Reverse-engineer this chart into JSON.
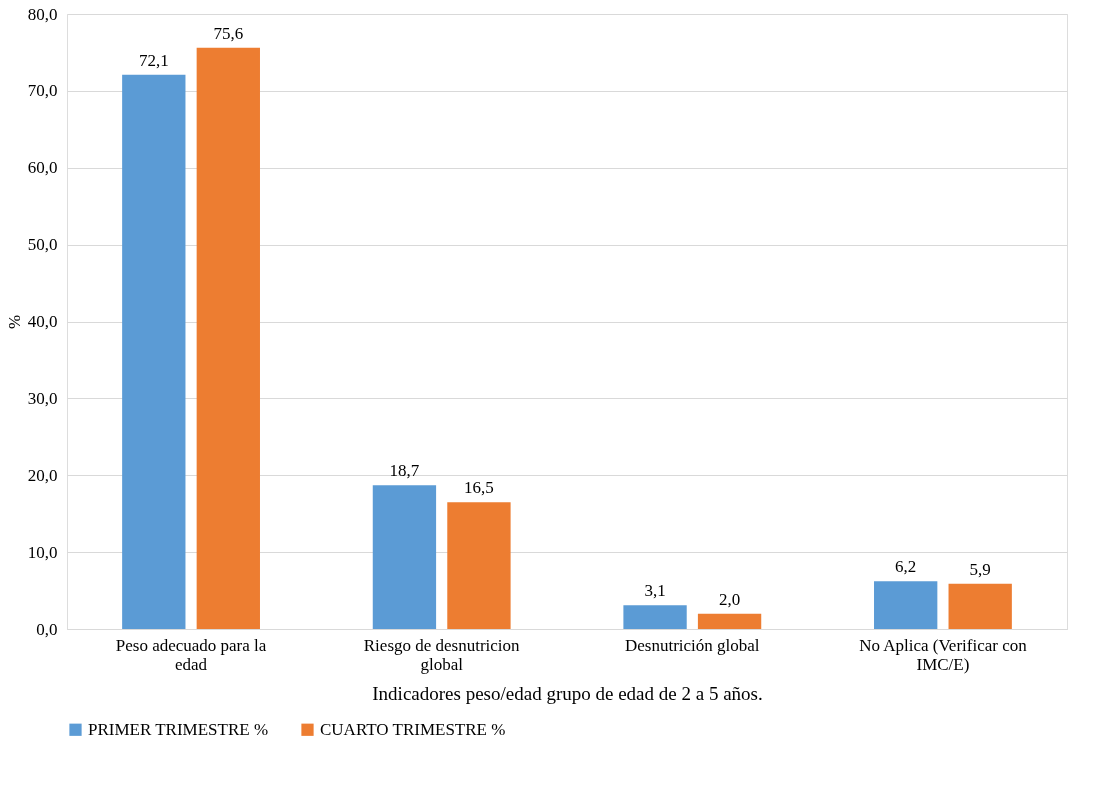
{
  "chart_data": {
    "type": "bar",
    "xlabel": "Indicadores peso/edad grupo de edad de 2 a 5 años.",
    "ylabel": "%",
    "categories": [
      "Peso adecuado para la edad",
      "Riesgo de desnutricion global",
      "Desnutrición global",
      "No Aplica (Verificar con IMC/E)"
    ],
    "series": [
      {
        "name": "PRIMER TRIMESTRE %",
        "color": "#5b9bd5",
        "values": [
          72.1,
          18.7,
          3.1,
          6.2
        ],
        "value_labels": [
          "72,1",
          "18,7",
          "3,1",
          "6,2"
        ]
      },
      {
        "name": "CUARTO TRIMESTRE %",
        "color": "#ed7d31",
        "values": [
          75.6,
          16.5,
          2.0,
          5.9
        ],
        "value_labels": [
          "75,6",
          "16,5",
          "2,0",
          "5,9"
        ]
      }
    ],
    "ylim": [
      0,
      80
    ],
    "yticks": [
      {
        "value": 0,
        "label": "0,0"
      },
      {
        "value": 10,
        "label": "10,0"
      },
      {
        "value": 20,
        "label": "20,0"
      },
      {
        "value": 30,
        "label": "30,0"
      },
      {
        "value": 40,
        "label": "40,0"
      },
      {
        "value": 50,
        "label": "50,0"
      },
      {
        "value": 60,
        "label": "60,0"
      },
      {
        "value": 70,
        "label": "70,0"
      },
      {
        "value": 80,
        "label": "80,0"
      }
    ],
    "grid": "y",
    "legend": "bottom"
  }
}
